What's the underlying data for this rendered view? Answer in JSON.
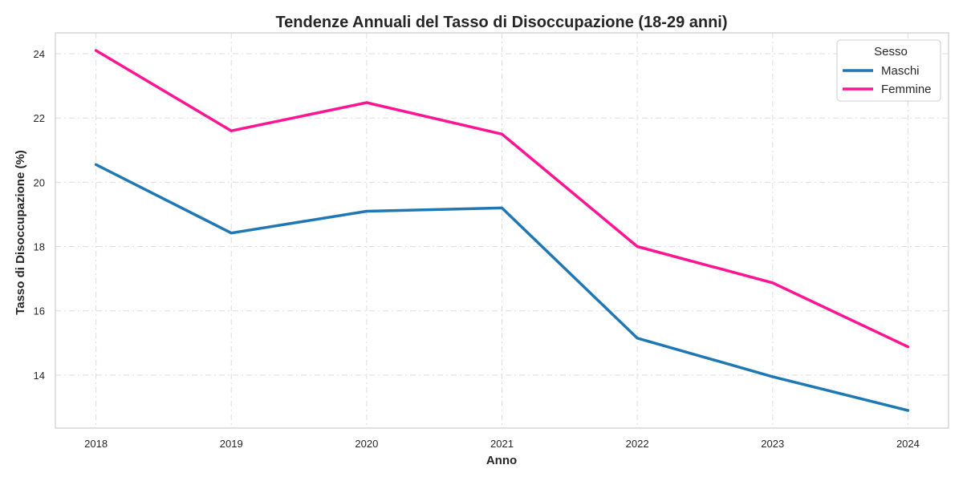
{
  "chart_data": {
    "type": "line",
    "title": "Tendenze Annuali del Tasso di Disoccupazione (18-29 anni)",
    "xlabel": "Anno",
    "ylabel": "Tasso di Disoccupazione (%)",
    "x": [
      2018,
      2019,
      2020,
      2021,
      2022,
      2023,
      2024
    ],
    "x_ticks": [
      "2018",
      "2019",
      "2020",
      "2021",
      "2022",
      "2023",
      "2024"
    ],
    "y_ticks": [
      "14",
      "16",
      "18",
      "20",
      "22",
      "24"
    ],
    "xlim": [
      2017.7,
      2024.3
    ],
    "ylim": [
      12.35,
      24.65
    ],
    "grid": true,
    "legend": {
      "title": "Sesso",
      "placement": "top-right"
    },
    "series": [
      {
        "name": "Maschi",
        "color": "#1f77b4",
        "values": [
          20.55,
          18.42,
          19.1,
          19.2,
          15.15,
          13.95,
          12.9
        ]
      },
      {
        "name": "Femmine",
        "color": "#ff1493",
        "values": [
          24.1,
          21.6,
          22.48,
          21.5,
          18.0,
          16.87,
          14.88
        ]
      }
    ]
  }
}
